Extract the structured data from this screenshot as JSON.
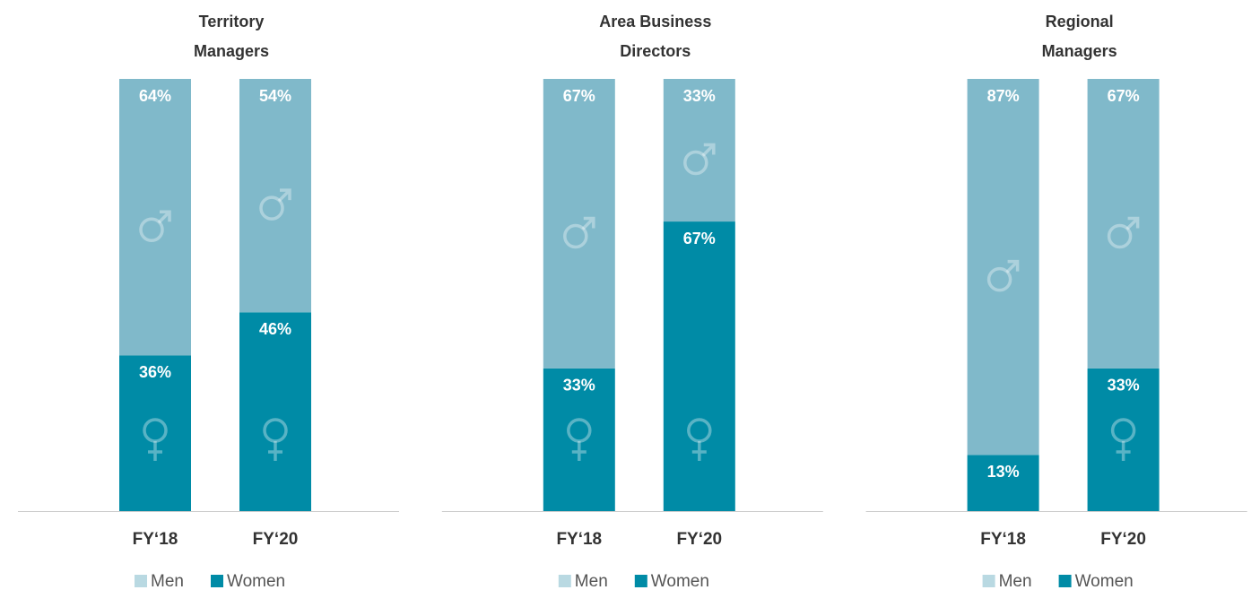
{
  "chart_data": [
    {
      "type": "bar",
      "stacked": true,
      "title": "Territory Managers",
      "categories": [
        "FY‘18",
        "FY‘20"
      ],
      "ylim": [
        0,
        100
      ],
      "series": [
        {
          "name": "Men",
          "color": "#80b9ca",
          "values": [
            64,
            54
          ],
          "value_labels": [
            "64%",
            "54%"
          ]
        },
        {
          "name": "Women",
          "color": "#008ba6",
          "values": [
            36,
            46
          ],
          "value_labels": [
            "36%",
            "46%"
          ]
        }
      ]
    },
    {
      "type": "bar",
      "stacked": true,
      "title": "Area Business Directors",
      "categories": [
        "FY‘18",
        "FY‘20"
      ],
      "ylim": [
        0,
        100
      ],
      "series": [
        {
          "name": "Men",
          "color": "#80b9ca",
          "values": [
            67,
            33
          ],
          "value_labels": [
            "67%",
            "33%"
          ]
        },
        {
          "name": "Women",
          "color": "#008ba6",
          "values": [
            33,
            67
          ],
          "value_labels": [
            "33%",
            "67%"
          ]
        }
      ]
    },
    {
      "type": "bar",
      "stacked": true,
      "title": "Regional Managers",
      "categories": [
        "FY‘18",
        "FY‘20"
      ],
      "ylim": [
        0,
        100
      ],
      "series": [
        {
          "name": "Men",
          "color": "#80b9ca",
          "values": [
            87,
            67
          ],
          "value_labels": [
            "87%",
            "67%"
          ]
        },
        {
          "name": "Women",
          "color": "#008ba6",
          "values": [
            13,
            33
          ],
          "value_labels": [
            "13%",
            "33%"
          ]
        }
      ]
    }
  ]
}
